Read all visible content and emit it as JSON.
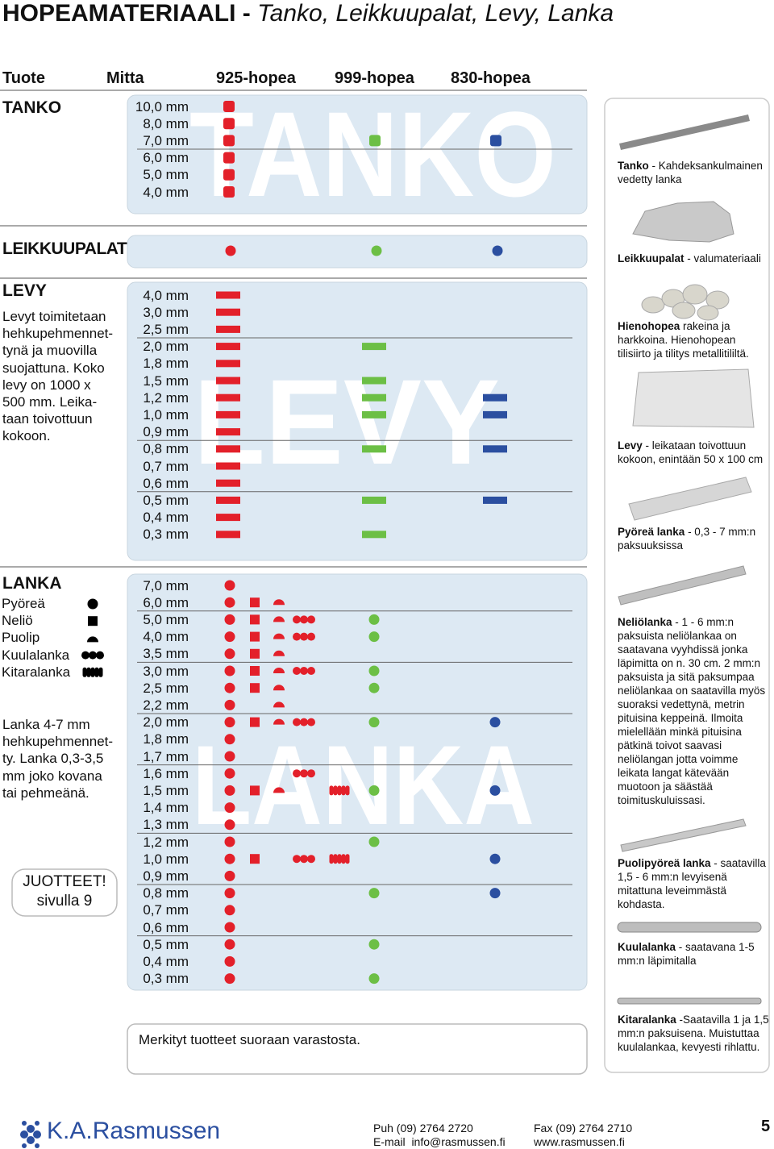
{
  "title": {
    "bold": "HOPEAMATERIAALI - ",
    "italic": "Tanko, Leikkuupalat, Levy, Lanka"
  },
  "header": [
    "Tuote",
    "Mitta",
    "925-hopea",
    "999-hopea",
    "830-hopea"
  ],
  "colors": [
    "#e3202a",
    "#6cbf45",
    "#2b4fa0"
  ],
  "tanko": {
    "label": "TANKO",
    "watermark": "TANKO",
    "rows": [
      {
        "size": "10,0 mm",
        "available": [
          true,
          false,
          false
        ]
      },
      {
        "size": "8,0 mm",
        "available": [
          true,
          false,
          false
        ]
      },
      {
        "size": "7,0 mm",
        "available": [
          true,
          true,
          true
        ]
      },
      {
        "size": "6,0 mm",
        "available": [
          true,
          false,
          false
        ]
      },
      {
        "size": "5,0 mm",
        "available": [
          true,
          false,
          false
        ]
      },
      {
        "size": "4,0 mm",
        "available": [
          true,
          false,
          false
        ]
      }
    ]
  },
  "leikkuupalat": {
    "label": "LEIKKUUPALAT",
    "available": [
      true,
      true,
      true
    ]
  },
  "levy": {
    "label": "LEVY",
    "watermark": "LEVY",
    "description": [
      "Levyt toimitetaan",
      "hehkupehmennet-",
      "tynä ja muovilla",
      "suojattuna. Koko",
      "levy on 1000 x",
      "500 mm. Leika-",
      "taan toivottuun",
      "kokoon."
    ],
    "rows": [
      {
        "size": "4,0 mm",
        "available": [
          true,
          false,
          false
        ]
      },
      {
        "size": "3,0 mm",
        "available": [
          true,
          false,
          false
        ]
      },
      {
        "size": "2,5 mm",
        "available": [
          true,
          false,
          false
        ]
      },
      {
        "size": "2,0 mm",
        "available": [
          true,
          true,
          false
        ]
      },
      {
        "size": "1,8 mm",
        "available": [
          true,
          false,
          false
        ]
      },
      {
        "size": "1,5 mm",
        "available": [
          true,
          true,
          false
        ]
      },
      {
        "size": "1,2 mm",
        "available": [
          true,
          true,
          true
        ]
      },
      {
        "size": "1,0 mm",
        "available": [
          true,
          true,
          true
        ]
      },
      {
        "size": "0,9 mm",
        "available": [
          true,
          false,
          false
        ]
      },
      {
        "size": "0,8 mm",
        "available": [
          true,
          true,
          true
        ]
      },
      {
        "size": "0,7 mm",
        "available": [
          true,
          false,
          false
        ]
      },
      {
        "size": "0,6 mm",
        "available": [
          true,
          false,
          false
        ]
      },
      {
        "size": "0,5 mm",
        "available": [
          true,
          true,
          true
        ]
      },
      {
        "size": "0,4 mm",
        "available": [
          true,
          false,
          false
        ]
      },
      {
        "size": "0,3 mm",
        "available": [
          true,
          true,
          false
        ]
      }
    ]
  },
  "lanka": {
    "label": "LANKA",
    "watermark": "LANKA",
    "forms": [
      "Pyöreä",
      "Neliö",
      "Puolip",
      "Kuulalanka",
      "Kitaralanka"
    ],
    "description": [
      "Lanka 4-7 mm",
      "hehkupehmennet-",
      "ty. Lanka 0,3-3,5",
      "mm joko kovana",
      "tai pehmeänä."
    ],
    "rows": [
      {
        "size": "7,0 mm",
        "forms": [
          true,
          false,
          false,
          false,
          false
        ],
        "available": [
          false,
          false
        ]
      },
      {
        "size": "6,0 mm",
        "forms": [
          true,
          true,
          true,
          false,
          false
        ],
        "available": [
          false,
          false
        ]
      },
      {
        "size": "5,0 mm",
        "forms": [
          true,
          true,
          true,
          true,
          false
        ],
        "available": [
          true,
          false
        ]
      },
      {
        "size": "4,0 mm",
        "forms": [
          true,
          true,
          true,
          true,
          false
        ],
        "available": [
          true,
          false
        ]
      },
      {
        "size": "3,5 mm",
        "forms": [
          true,
          true,
          true,
          false,
          false
        ],
        "available": [
          false,
          false
        ]
      },
      {
        "size": "3,0 mm",
        "forms": [
          true,
          true,
          true,
          true,
          false
        ],
        "available": [
          true,
          false
        ]
      },
      {
        "size": "2,5 mm",
        "forms": [
          true,
          true,
          true,
          false,
          false
        ],
        "available": [
          true,
          false
        ]
      },
      {
        "size": "2,2 mm",
        "forms": [
          true,
          false,
          true,
          false,
          false
        ],
        "available": [
          false,
          false
        ]
      },
      {
        "size": "2,0 mm",
        "forms": [
          true,
          true,
          true,
          true,
          false
        ],
        "available": [
          true,
          true
        ]
      },
      {
        "size": "1,8 mm",
        "forms": [
          true,
          false,
          false,
          false,
          false
        ],
        "available": [
          false,
          false
        ]
      },
      {
        "size": "1,7 mm",
        "forms": [
          true,
          false,
          false,
          false,
          false
        ],
        "available": [
          false,
          false
        ]
      },
      {
        "size": "1,6 mm",
        "forms": [
          true,
          false,
          false,
          true,
          false
        ],
        "available": [
          false,
          false
        ]
      },
      {
        "size": "1,5 mm",
        "forms": [
          true,
          true,
          true,
          false,
          true
        ],
        "available": [
          true,
          true
        ]
      },
      {
        "size": "1,4 mm",
        "forms": [
          true,
          false,
          false,
          false,
          false
        ],
        "available": [
          false,
          false
        ]
      },
      {
        "size": "1,3 mm",
        "forms": [
          true,
          false,
          false,
          false,
          false
        ],
        "available": [
          false,
          false
        ]
      },
      {
        "size": "1,2 mm",
        "forms": [
          true,
          false,
          false,
          false,
          false
        ],
        "available": [
          true,
          false
        ]
      },
      {
        "size": "1,0 mm",
        "forms": [
          true,
          true,
          false,
          true,
          true
        ],
        "available": [
          false,
          true
        ]
      },
      {
        "size": "0,9 mm",
        "forms": [
          true,
          false,
          false,
          false,
          false
        ],
        "available": [
          false,
          false
        ]
      },
      {
        "size": "0,8 mm",
        "forms": [
          true,
          false,
          false,
          false,
          false
        ],
        "available": [
          true,
          true
        ]
      },
      {
        "size": "0,7 mm",
        "forms": [
          true,
          false,
          false,
          false,
          false
        ],
        "available": [
          false,
          false
        ]
      },
      {
        "size": "0,6 mm",
        "forms": [
          true,
          false,
          false,
          false,
          false
        ],
        "available": [
          false,
          false
        ]
      },
      {
        "size": "0,5 mm",
        "forms": [
          true,
          false,
          false,
          false,
          false
        ],
        "available": [
          true,
          false
        ]
      },
      {
        "size": "0,4 mm",
        "forms": [
          true,
          false,
          false,
          false,
          false
        ],
        "available": [
          false,
          false
        ]
      },
      {
        "size": "0,3 mm",
        "forms": [
          true,
          false,
          false,
          false,
          false
        ],
        "available": [
          true,
          false
        ]
      }
    ]
  },
  "juotteet": [
    "JUOTTEET!",
    "sivulla 9"
  ],
  "note": "Merkityt tuotteet suoraan varastosta.",
  "captions": [
    {
      "bold": "Tanko",
      "text": " - Kahdeksankulmainen vedetty lanka"
    },
    {
      "bold": "Leikkuupalat",
      "text": " - valumateriaali"
    },
    {
      "bold": "Hienohopea",
      "text": " rakeina ja harkkoina. Hienohopean tilisiirto ja tilitys metallitililtä."
    },
    {
      "bold": "Levy",
      "text": " - leikataan toivottuun kokoon, enintään 50 x 100 cm"
    },
    {
      "bold": "Pyöreä lanka",
      "text": " - 0,3 - 7 mm:n paksuuksissa"
    },
    {
      "bold": "Neliölanka",
      "text": " - 1 - 6 mm:n paksuista neliölankaa on saatavana vyyhdissä jonka läpimitta on n. 30 cm. 2 mm:n paksuista ja sitä paksumpaa neliölankaa on saatavilla myös suoraksi vedettynä, metrin pituisina keppeinä. Ilmoita mielellään minkä pituisina pätkinä toivot saavasi neliölangan jotta voimme leikata langat kätevään muotoon ja säästää toimituskuluissasi."
    },
    {
      "bold": "Puolipyöreä lanka",
      "text": " - saatavilla 1,5 - 6 mm:n levyisenä mitattuna leveimmästä kohdasta."
    },
    {
      "bold": "Kuulalanka",
      "text": " - saatavana 1-5 mm:n läpimitalla"
    },
    {
      "bold": "Kitaralanka",
      "text": " -Saatavilla 1 ja 1,5 mm:n paksuisena. Muistuttaa kuulalankaa, kevyesti rihlattu."
    }
  ],
  "footer": {
    "company": "K.A.Rasmussen",
    "phone": "Puh (09) 2764 2720",
    "email": "E-mail  info@rasmussen.fi",
    "fax": "Fax (09) 2764 2710",
    "web": "www.rasmussen.fi",
    "page": "5"
  }
}
